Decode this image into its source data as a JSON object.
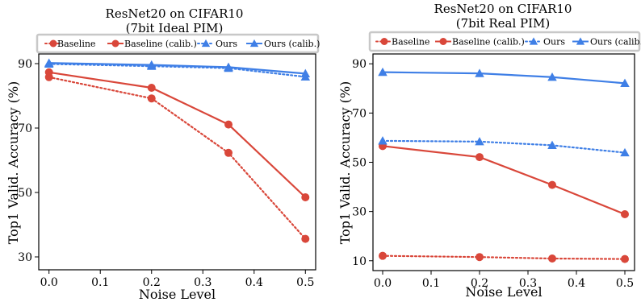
{
  "colors": {
    "red": "#d9473a",
    "blue": "#3f7fe6"
  },
  "chart_data": [
    {
      "type": "line",
      "title": "ResNet20 on CIFAR10",
      "subtitle": "(7bit Ideal PIM)",
      "xlabel": "Noise Level",
      "ylabel": "Top1 Valid. Accuracy (%)",
      "xlim": [
        -0.02,
        0.52
      ],
      "ylim": [
        26,
        93
      ],
      "xticks": [
        0.0,
        0.1,
        0.2,
        0.3,
        0.4,
        0.5
      ],
      "xtick_labels": [
        "0.0",
        "0.1",
        "0.2",
        "0.3",
        "0.4",
        "0.5"
      ],
      "yticks": [
        30,
        50,
        70,
        90
      ],
      "ytick_labels": [
        "30",
        "50",
        "70",
        "90"
      ],
      "grid": false,
      "legend_position": "top",
      "series": [
        {
          "name": "Baseline",
          "color": "#d9473a",
          "style": "dotted",
          "marker": "circle",
          "x": [
            0.0,
            0.2,
            0.35,
            0.5
          ],
          "y": [
            85.8,
            79.2,
            62.3,
            35.6
          ]
        },
        {
          "name": "Baseline (calib.)",
          "color": "#d9473a",
          "style": "solid",
          "marker": "circle",
          "x": [
            0.0,
            0.2,
            0.35,
            0.5
          ],
          "y": [
            87.3,
            82.5,
            71.1,
            48.5
          ]
        },
        {
          "name": "Ours",
          "color": "#3f7fe6",
          "style": "dotted",
          "marker": "triangle",
          "x": [
            0.0,
            0.2,
            0.35,
            0.5
          ],
          "y": [
            89.9,
            89.2,
            88.6,
            85.9
          ]
        },
        {
          "name": "Ours (calib.)",
          "color": "#3f7fe6",
          "style": "solid",
          "marker": "triangle",
          "x": [
            0.0,
            0.2,
            0.35,
            0.5
          ],
          "y": [
            90.2,
            89.6,
            88.9,
            86.9
          ]
        }
      ]
    },
    {
      "type": "line",
      "title": "ResNet20 on CIFAR10",
      "subtitle": "(7bit Real PIM)",
      "xlabel": "Noise Level",
      "ylabel": "Top1 Valid. Accuracy (%)",
      "xlim": [
        -0.02,
        0.52
      ],
      "ylim": [
        6,
        94
      ],
      "xticks": [
        0.0,
        0.1,
        0.2,
        0.3,
        0.4,
        0.5
      ],
      "xtick_labels": [
        "0.0",
        "0.1",
        "0.2",
        "0.3",
        "0.4",
        "0.5"
      ],
      "yticks": [
        10,
        30,
        50,
        70,
        90
      ],
      "ytick_labels": [
        "10",
        "30",
        "50",
        "70",
        "90"
      ],
      "grid": false,
      "legend_position": "top",
      "series": [
        {
          "name": "Baseline",
          "color": "#d9473a",
          "style": "dotted",
          "marker": "circle",
          "x": [
            0.0,
            0.2,
            0.35,
            0.5
          ],
          "y": [
            12.0,
            11.5,
            10.9,
            10.7
          ]
        },
        {
          "name": "Baseline (calib.)",
          "color": "#d9473a",
          "style": "solid",
          "marker": "circle",
          "x": [
            0.0,
            0.2,
            0.35,
            0.5
          ],
          "y": [
            56.6,
            52.1,
            40.8,
            28.9
          ]
        },
        {
          "name": "Ours",
          "color": "#3f7fe6",
          "style": "dotted",
          "marker": "triangle",
          "x": [
            0.0,
            0.2,
            0.35,
            0.5
          ],
          "y": [
            58.7,
            58.4,
            56.9,
            53.9
          ]
        },
        {
          "name": "Ours (calib.)",
          "color": "#3f7fe6",
          "style": "solid",
          "marker": "triangle",
          "x": [
            0.0,
            0.2,
            0.35,
            0.5
          ],
          "y": [
            86.6,
            86.1,
            84.6,
            82.1
          ]
        }
      ]
    }
  ]
}
